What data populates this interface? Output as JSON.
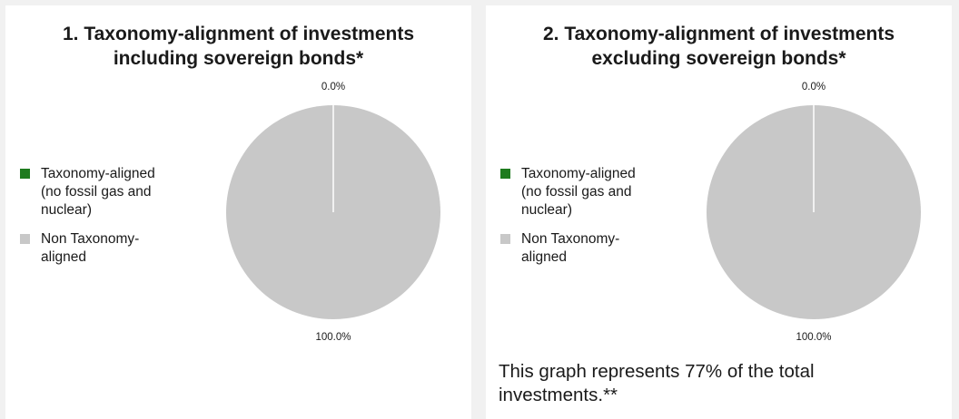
{
  "chart_data": [
    {
      "type": "pie",
      "title_lines": [
        "1. Taxonomy-alignment of investments",
        "including sovereign bonds*"
      ],
      "slices": [
        {
          "label": "Taxonomy-aligned (no fossil gas and nuclear)",
          "value": 0.0,
          "value_label": "0.0%",
          "color": "#1e7b1e"
        },
        {
          "label": "Non Taxonomy-aligned",
          "value": 100.0,
          "value_label": "100.0%",
          "color": "#c8c8c8"
        }
      ],
      "legend": {
        "placement": "left",
        "items": [
          {
            "lines": [
              "Taxonomy-aligned",
              "(no fossil gas and",
              "nuclear)"
            ],
            "color": "#1e7b1e"
          },
          {
            "lines": [
              "Non Taxonomy-",
              "aligned"
            ],
            "color": "#c8c8c8"
          }
        ]
      }
    },
    {
      "type": "pie",
      "title_lines": [
        "2. Taxonomy-alignment of investments",
        "excluding sovereign bonds*"
      ],
      "slices": [
        {
          "label": "Taxonomy-aligned (no fossil gas and nuclear)",
          "value": 0.0,
          "value_label": "0.0%",
          "color": "#1e7b1e"
        },
        {
          "label": "Non Taxonomy-aligned",
          "value": 100.0,
          "value_label": "100.0%",
          "color": "#c8c8c8"
        }
      ],
      "legend": {
        "placement": "left",
        "items": [
          {
            "lines": [
              "Taxonomy-aligned",
              "(no fossil gas and",
              "nuclear)"
            ],
            "color": "#1e7b1e"
          },
          {
            "lines": [
              "Non Taxonomy-",
              "aligned"
            ],
            "color": "#c8c8c8"
          }
        ]
      },
      "note_lines": [
        "This graph represents 77% of the total",
        "investments.**"
      ]
    }
  ]
}
